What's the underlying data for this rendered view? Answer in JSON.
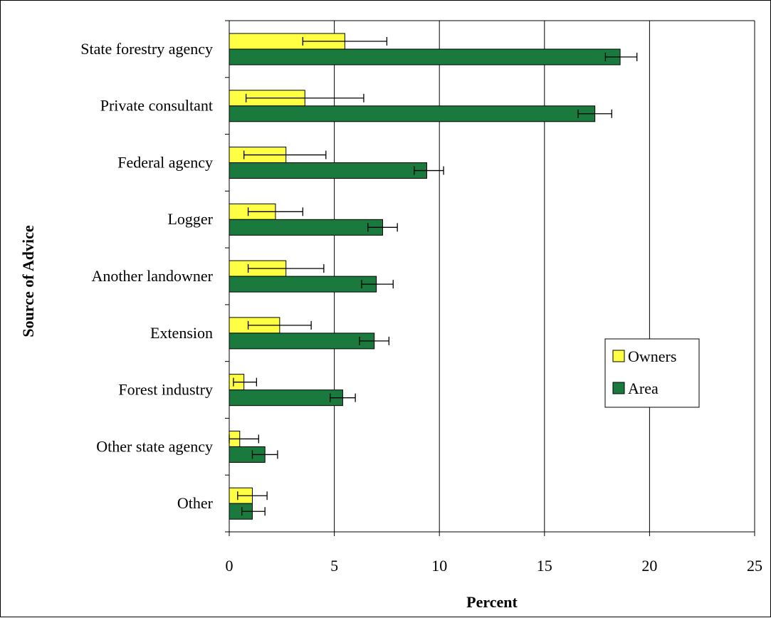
{
  "chart_data": {
    "type": "bar",
    "orientation": "horizontal",
    "title": "",
    "xlabel": "Percent",
    "ylabel": "Source of Advice",
    "xlim": [
      0,
      25
    ],
    "x_ticks": [
      0,
      5,
      10,
      15,
      20,
      25
    ],
    "grid": "vertical",
    "legend_position": "right",
    "categories": [
      "State forestry agency",
      "Private consultant",
      "Federal agency",
      "Logger",
      "Another landowner",
      "Extension",
      "Forest industry",
      "Other state agency",
      "Other"
    ],
    "series": [
      {
        "name": "Owners",
        "color": "#ffff44",
        "values": [
          5.5,
          3.6,
          2.7,
          2.2,
          2.7,
          2.4,
          0.7,
          0.5,
          1.1
        ],
        "error_low": [
          3.5,
          0.8,
          0.7,
          0.9,
          0.9,
          0.9,
          0.2,
          0.0,
          0.4
        ],
        "error_high": [
          7.5,
          6.4,
          4.6,
          3.5,
          4.5,
          3.9,
          1.3,
          1.4,
          1.8
        ]
      },
      {
        "name": "Area",
        "color": "#1a7a3e",
        "values": [
          18.6,
          17.4,
          9.4,
          7.3,
          7.0,
          6.9,
          5.4,
          1.7,
          1.1
        ],
        "error_low": [
          17.9,
          16.6,
          8.8,
          6.6,
          6.3,
          6.2,
          4.8,
          1.1,
          0.6
        ],
        "error_high": [
          19.4,
          18.2,
          10.2,
          8.0,
          7.8,
          7.6,
          6.0,
          2.3,
          1.7
        ]
      }
    ]
  }
}
